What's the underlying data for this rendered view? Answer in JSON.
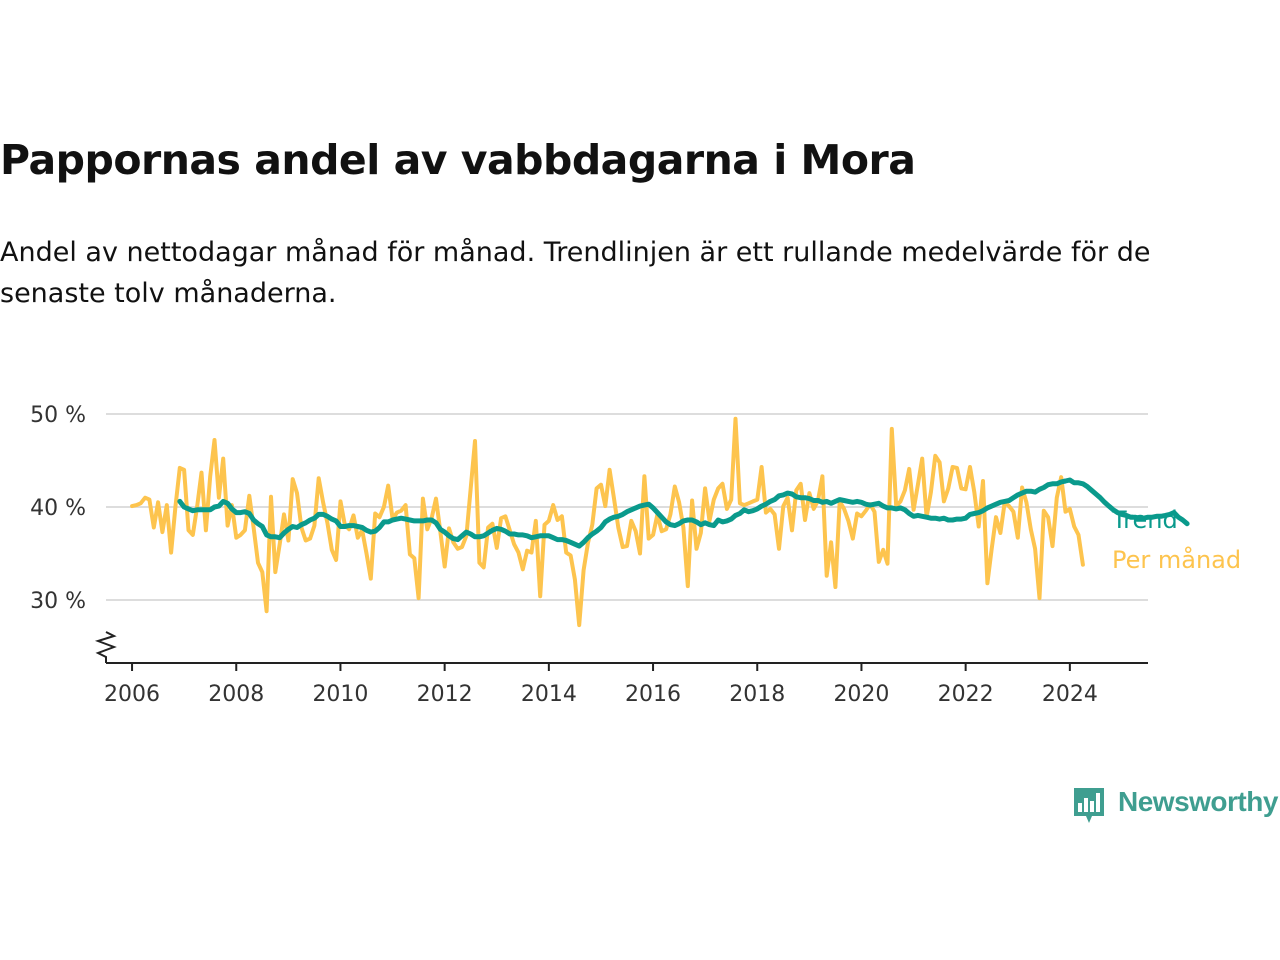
{
  "title": "Pappornas andel av vabbdagarna i Mora",
  "subtitle": "Andel av nettodagar månad för månad. Trendlinjen är ett rullande medelvärde för de senaste tolv månaderna.",
  "brand": {
    "name": "Newsworthy",
    "icon": "bar-chart-speech-icon",
    "color": "#3f9e90"
  },
  "chart_data": {
    "type": "line",
    "ylim": [
      25,
      50
    ],
    "yticks": [
      {
        "value": 30,
        "label": "30 %"
      },
      {
        "value": 40,
        "label": "40 %"
      },
      {
        "value": 50,
        "label": "50 %"
      }
    ],
    "xlim": [
      "2005-07",
      "2025-07"
    ],
    "xticks": [
      "2006",
      "2008",
      "2010",
      "2012",
      "2014",
      "2016",
      "2018",
      "2020",
      "2022",
      "2024"
    ],
    "grid": true,
    "axis_break": true,
    "legend": "inline-right",
    "series": [
      {
        "name": "Per månad",
        "color": "#fdc44e",
        "start": "2006-01",
        "values": [
          40.1,
          40.2,
          40.4,
          41.0,
          40.8,
          37.8,
          40.5,
          37.3,
          40.2,
          35.1,
          40.1,
          44.2,
          44.0,
          37.5,
          37.0,
          40.1,
          43.7,
          37.5,
          43.3,
          47.2,
          41.0,
          45.2,
          38.0,
          40.2,
          36.7,
          37.0,
          37.5,
          41.2,
          37.8,
          34.0,
          33.0,
          28.8,
          41.1,
          33.0,
          36.0,
          39.2,
          36.4,
          43.0,
          41.5,
          37.8,
          36.4,
          36.6,
          38.0,
          43.1,
          40.5,
          38.3,
          35.4,
          34.3,
          40.6,
          38.1,
          37.6,
          39.1,
          36.7,
          37.5,
          35.0,
          32.3,
          39.3,
          38.9,
          40.0,
          42.3,
          38.7,
          39.4,
          39.6,
          40.2,
          34.9,
          34.5,
          30.2,
          40.9,
          37.6,
          38.8,
          40.9,
          37.4,
          33.6,
          37.7,
          36.2,
          35.5,
          35.7,
          36.9,
          42.0,
          47.1,
          34.0,
          33.5,
          37.8,
          38.2,
          35.6,
          38.8,
          39.0,
          37.5,
          36.0,
          35.1,
          33.3,
          35.3,
          35.1,
          38.5,
          30.4,
          38.1,
          38.5,
          40.2,
          38.6,
          39.0,
          35.1,
          34.8,
          32.2,
          27.3,
          33.2,
          36.1,
          38.1,
          42.0,
          42.4,
          40.1,
          44.0,
          40.9,
          37.8,
          35.7,
          35.8,
          38.5,
          37.4,
          35.0,
          43.3,
          36.6,
          37.0,
          39.2,
          37.4,
          37.6,
          39.2,
          42.2,
          40.5,
          37.8,
          31.5,
          40.7,
          35.5,
          37.2,
          42.0,
          38.5,
          40.8,
          42.0,
          42.5,
          39.8,
          40.8,
          49.5,
          40.4,
          40.2,
          40.4,
          40.6,
          40.8,
          44.3,
          39.4,
          39.8,
          39.2,
          35.5,
          40.1,
          41.0,
          37.5,
          41.8,
          42.5,
          38.6,
          41.5,
          39.8,
          40.7,
          43.3,
          32.6,
          36.2,
          31.4,
          40.6,
          39.8,
          38.5,
          36.6,
          39.3,
          39.0,
          39.6,
          40.3,
          39.5,
          34.1,
          35.4,
          33.9,
          48.4,
          40.1,
          40.6,
          41.8,
          44.1,
          39.7,
          42.4,
          45.2,
          38.9,
          41.6,
          45.5,
          44.8,
          40.6,
          42.0,
          44.3,
          44.2,
          42.0,
          41.9,
          44.3,
          41.6,
          37.9,
          42.8,
          31.8,
          35.5,
          38.9,
          37.2,
          40.5,
          40.1,
          39.5,
          36.7,
          42.1,
          40.5,
          37.6,
          35.5,
          30.2,
          39.6,
          38.9,
          35.8,
          41.0,
          43.2,
          39.5,
          39.8,
          37.9,
          37.0,
          33.8
        ]
      },
      {
        "name": "Trend",
        "color": "#0a9a8c",
        "start": "2006-12",
        "values": [
          40.6,
          40.0,
          39.8,
          39.6,
          39.7,
          39.7,
          39.7,
          39.7,
          40.0,
          40.1,
          40.6,
          40.4,
          39.8,
          39.4,
          39.4,
          39.5,
          39.3,
          38.6,
          38.2,
          37.9,
          37.0,
          36.8,
          36.8,
          36.7,
          37.2,
          37.6,
          37.9,
          37.8,
          38.1,
          38.3,
          38.6,
          38.8,
          39.2,
          39.2,
          39.0,
          38.7,
          38.5,
          37.9,
          37.9,
          38.0,
          38.0,
          37.9,
          37.8,
          37.5,
          37.3,
          37.4,
          37.8,
          38.4,
          38.4,
          38.6,
          38.7,
          38.8,
          38.7,
          38.6,
          38.5,
          38.5,
          38.5,
          38.6,
          38.6,
          38.3,
          37.6,
          37.3,
          36.9,
          36.6,
          36.5,
          36.9,
          37.3,
          37.1,
          36.8,
          36.8,
          36.9,
          37.2,
          37.5,
          37.7,
          37.6,
          37.4,
          37.1,
          37.1,
          37.0,
          37.0,
          36.9,
          36.7,
          36.8,
          36.9,
          36.9,
          36.9,
          36.7,
          36.5,
          36.5,
          36.4,
          36.2,
          36.0,
          35.8,
          36.2,
          36.7,
          37.1,
          37.4,
          37.8,
          38.4,
          38.7,
          38.9,
          39.0,
          39.2,
          39.5,
          39.7,
          39.9,
          40.1,
          40.2,
          40.3,
          39.9,
          39.4,
          38.9,
          38.4,
          38.1,
          38.0,
          38.2,
          38.5,
          38.6,
          38.6,
          38.4,
          38.1,
          38.3,
          38.1,
          38.0,
          38.6,
          38.4,
          38.5,
          38.7,
          39.1,
          39.3,
          39.7,
          39.5,
          39.6,
          39.8,
          40.1,
          40.3,
          40.6,
          40.8,
          41.2,
          41.3,
          41.5,
          41.4,
          41.1,
          41.0,
          41.0,
          40.9,
          40.7,
          40.7,
          40.5,
          40.6,
          40.4,
          40.6,
          40.8,
          40.7,
          40.6,
          40.5,
          40.6,
          40.5,
          40.3,
          40.2,
          40.3,
          40.4,
          40.1,
          39.9,
          39.9,
          39.8,
          39.9,
          39.7,
          39.3,
          39.0,
          39.1,
          39.0,
          38.9,
          38.8,
          38.8,
          38.7,
          38.8,
          38.6,
          38.6,
          38.7,
          38.7,
          38.8,
          39.2,
          39.3,
          39.4,
          39.6,
          39.9,
          40.1,
          40.3,
          40.5,
          40.6,
          40.7,
          41.0,
          41.3,
          41.5,
          41.7,
          41.7,
          41.6,
          41.9,
          42.1,
          42.4,
          42.5,
          42.5,
          42.7,
          42.8,
          42.9,
          42.6,
          42.6,
          42.5,
          42.2,
          41.8,
          41.4,
          41.0,
          40.5,
          40.1,
          39.7,
          39.4,
          39.2,
          39.1,
          38.9,
          38.9,
          38.8,
          38.8,
          38.9,
          38.9,
          39.0,
          39.0,
          39.1,
          39.2,
          39.4,
          38.9,
          38.6,
          38.2
        ]
      }
    ]
  }
}
